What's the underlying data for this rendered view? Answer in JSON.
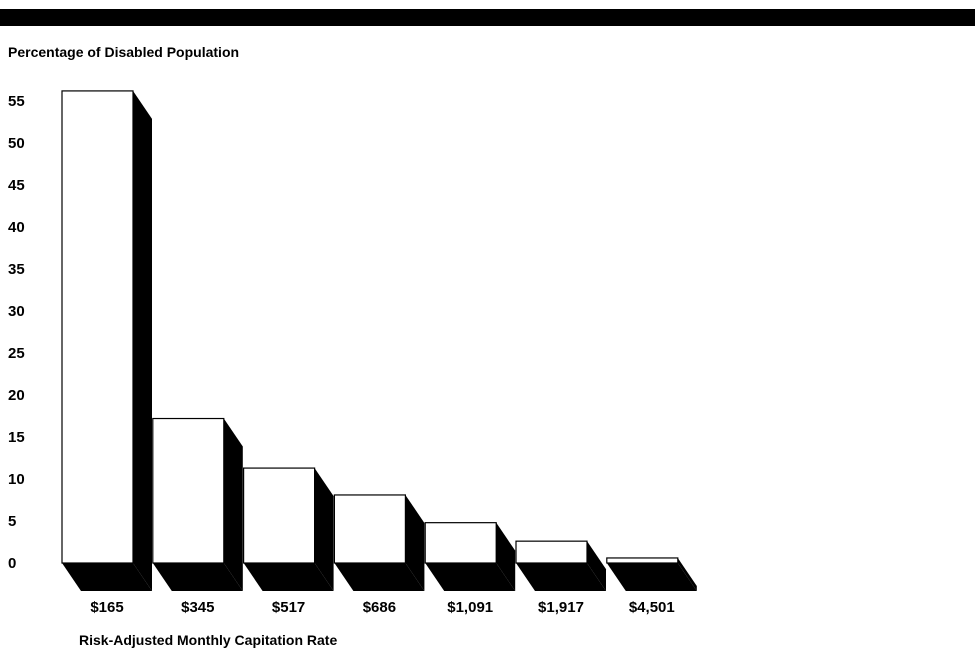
{
  "chart_data": {
    "type": "bar",
    "title": "Percentage of Disabled Population",
    "xlabel": "Risk-Adjusted Monthly Capitation Rate",
    "ylabel": "",
    "categories": [
      "$165",
      "$345",
      "$517",
      "$686",
      "$1,091",
      "$1,917",
      "$4,501"
    ],
    "values": [
      56.2,
      17.2,
      11.3,
      8.1,
      4.8,
      2.6,
      0.6
    ],
    "yticks": [
      0,
      5,
      10,
      15,
      20,
      25,
      30,
      35,
      40,
      45,
      50,
      55
    ],
    "ylim": [
      0,
      56
    ],
    "grid": false,
    "style": "3d",
    "colors": {
      "bar_face": "#ffffff",
      "bar_shadow": "#000000",
      "text": "#000000"
    }
  }
}
